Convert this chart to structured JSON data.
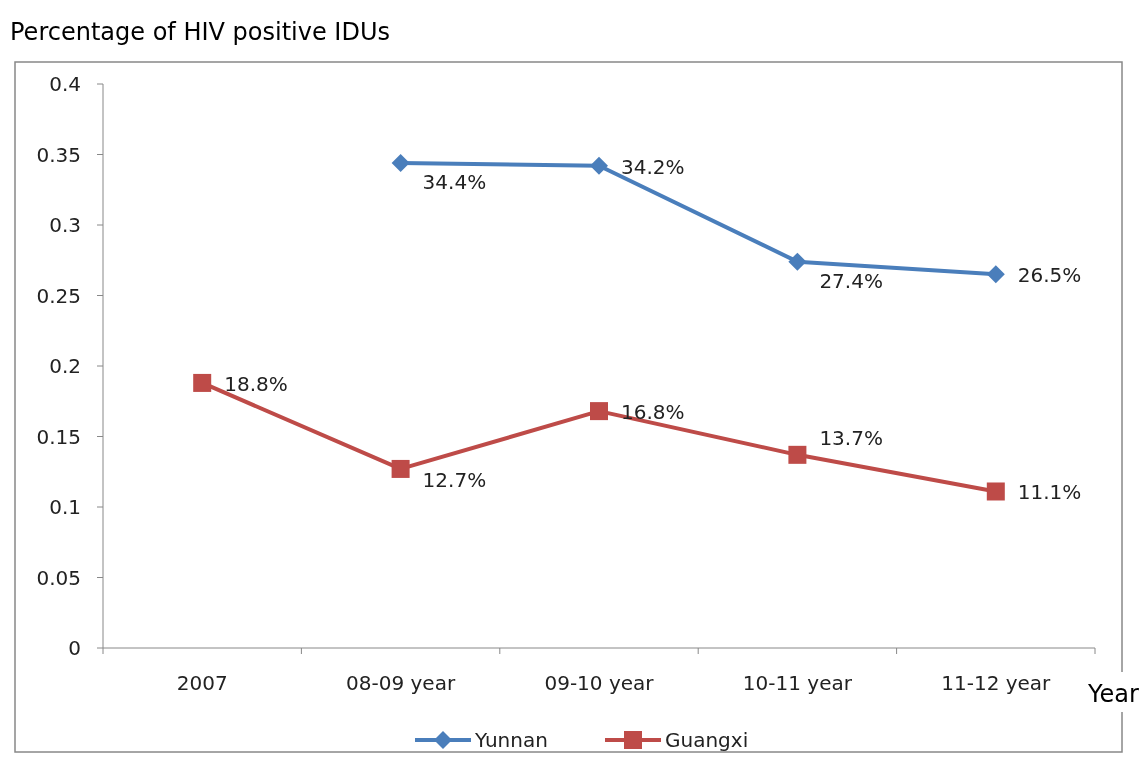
{
  "chart_data": {
    "type": "line",
    "ylabel": "Percentage of HIV positive IDUs",
    "xlabel": "Year",
    "categories": [
      "2007",
      "08-09 year",
      "09-10 year",
      "10-11 year",
      "11-12 year"
    ],
    "series": [
      {
        "name": "Yunnan",
        "color": "#4a7ebb",
        "marker": "diamond",
        "values": [
          null,
          0.344,
          0.342,
          0.274,
          0.265
        ],
        "value_labels": [
          null,
          "34.4%",
          "34.2%",
          "27.4%",
          "26.5%"
        ]
      },
      {
        "name": "Guangxi",
        "color": "#be4b48",
        "marker": "square",
        "values": [
          0.188,
          0.127,
          0.168,
          0.137,
          0.111
        ],
        "value_labels": [
          "18.8%",
          "12.7%",
          "16.8%",
          "13.7%",
          "11.1%"
        ]
      }
    ],
    "ylim": [
      0,
      0.4
    ],
    "yticks": [
      0,
      0.05,
      0.1,
      0.15,
      0.2,
      0.25,
      0.3,
      0.35,
      0.4
    ],
    "grid": false,
    "legend": "bottom",
    "line_style": "solid"
  }
}
